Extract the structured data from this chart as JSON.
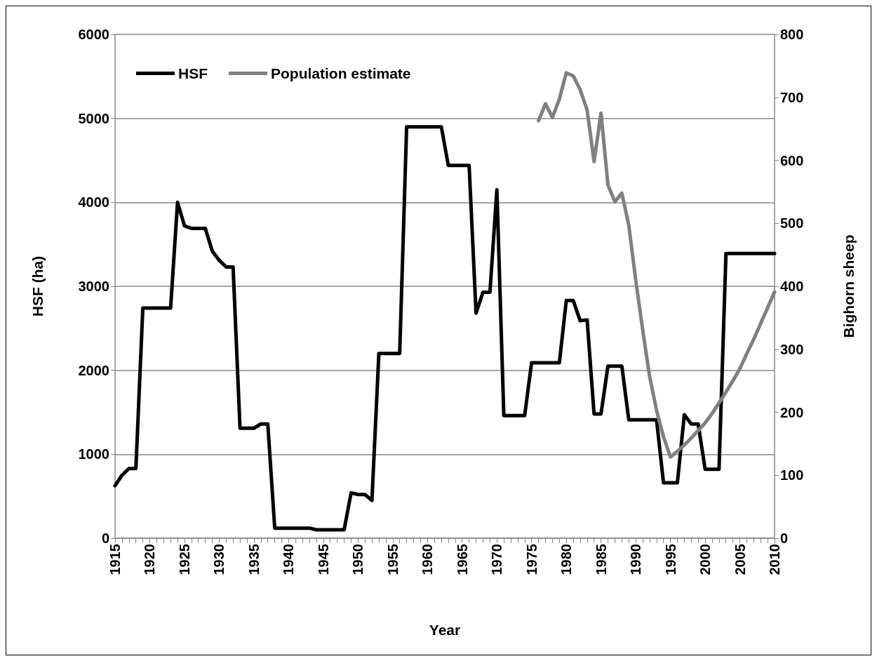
{
  "chart_data": {
    "type": "line",
    "xlabel": "Year",
    "ylabel": "HSF (ha)",
    "y2label": "Bighorn sheep",
    "x": [
      1915,
      1916,
      1917,
      1918,
      1919,
      1920,
      1921,
      1922,
      1923,
      1924,
      1925,
      1926,
      1927,
      1928,
      1929,
      1930,
      1931,
      1932,
      1933,
      1934,
      1935,
      1936,
      1937,
      1938,
      1939,
      1940,
      1941,
      1942,
      1943,
      1944,
      1945,
      1946,
      1947,
      1948,
      1949,
      1950,
      1951,
      1952,
      1953,
      1954,
      1955,
      1956,
      1957,
      1958,
      1959,
      1960,
      1961,
      1962,
      1963,
      1964,
      1965,
      1966,
      1967,
      1968,
      1969,
      1970,
      1971,
      1972,
      1973,
      1974,
      1975,
      1976,
      1977,
      1978,
      1979,
      1980,
      1981,
      1982,
      1983,
      1984,
      1985,
      1986,
      1987,
      1988,
      1989,
      1990,
      1991,
      1992,
      1993,
      1994,
      1995,
      1996,
      1997,
      1998,
      1999,
      2000,
      2001,
      2002,
      2003,
      2004,
      2005,
      2006,
      2007,
      2008,
      2009,
      2010
    ],
    "series": [
      {
        "name": "HSF",
        "color": "#000000",
        "values": [
          625,
          750,
          830,
          830,
          2740,
          2740,
          2740,
          2740,
          2740,
          4000,
          3720,
          3690,
          3690,
          3690,
          3420,
          3310,
          3230,
          3230,
          1310,
          1310,
          1310,
          1360,
          1360,
          120,
          120,
          120,
          120,
          120,
          120,
          100,
          100,
          100,
          100,
          100,
          540,
          520,
          520,
          450,
          2200,
          2200,
          2200,
          2200,
          4900,
          4900,
          4900,
          4900,
          4900,
          4900,
          4440,
          4440,
          4440,
          4440,
          2680,
          2930,
          2930,
          4150,
          1460,
          1460,
          1460,
          1460,
          2090,
          2090,
          2090,
          2090,
          2090,
          2830,
          2830,
          2590,
          2600,
          1480,
          1480,
          2050,
          2050,
          2050,
          1410,
          1410,
          1410,
          1410,
          1410,
          660,
          660,
          660,
          1470,
          1360,
          1360,
          820,
          820,
          820,
          3390,
          3390,
          3390,
          3390,
          3390,
          3390,
          3390,
          3390
        ]
      },
      {
        "name": "Population estimate",
        "color": "#808080",
        "axis": "y2",
        "x": [
          1976,
          1977,
          1978,
          1979,
          1980,
          1981,
          1982,
          1983,
          1984,
          1985,
          1986,
          1987,
          1988,
          1989,
          1990,
          1991,
          1992,
          1993,
          1994,
          1995,
          1996,
          1997,
          1998,
          1999,
          2000,
          2001,
          2002,
          2003,
          2004,
          2005,
          2006,
          2007,
          2008,
          2009,
          2010
        ],
        "values": [
          663,
          690,
          668,
          697,
          739,
          734,
          712,
          680,
          598,
          675,
          561,
          534,
          548,
          497,
          410,
          331,
          257,
          203,
          161,
          129,
          138,
          148,
          159,
          171,
          183,
          198,
          215,
          232,
          250,
          269,
          293,
          316,
          341,
          366,
          391
        ]
      }
    ],
    "xlim": [
      1915,
      2010
    ],
    "xticks": [
      1915,
      {
        "value": 1916,
        "label": null
      },
      {
        "value": 1917,
        "label": null
      },
      {
        "value": 1918,
        "label": null
      },
      {
        "value": 1919,
        "label": null
      },
      1920,
      {
        "value": 1921,
        "label": null
      },
      {
        "value": 1922,
        "label": null
      },
      {
        "value": 1923,
        "label": null
      },
      {
        "value": 1924,
        "label": null
      },
      1925,
      {
        "value": 1926,
        "label": null
      },
      {
        "value": 1927,
        "label": null
      },
      {
        "value": 1928,
        "label": null
      },
      {
        "value": 1929,
        "label": null
      },
      1930,
      {
        "value": 1931,
        "label": null
      },
      {
        "value": 1932,
        "label": null
      },
      {
        "value": 1933,
        "label": null
      },
      {
        "value": 1934,
        "label": null
      },
      1935,
      {
        "value": 1936,
        "label": null
      },
      {
        "value": 1937,
        "label": null
      },
      {
        "value": 1938,
        "label": null
      },
      {
        "value": 1939,
        "label": null
      },
      1940,
      {
        "value": 1941,
        "label": null
      },
      {
        "value": 1942,
        "label": null
      },
      {
        "value": 1943,
        "label": null
      },
      {
        "value": 1944,
        "label": null
      },
      1945,
      {
        "value": 1946,
        "label": null
      },
      {
        "value": 1947,
        "label": null
      },
      {
        "value": 1948,
        "label": null
      },
      {
        "value": 1949,
        "label": null
      },
      1950,
      {
        "value": 1951,
        "label": null
      },
      {
        "value": 1952,
        "label": null
      },
      {
        "value": 1953,
        "label": null
      },
      {
        "value": 1954,
        "label": null
      },
      1955,
      {
        "value": 1956,
        "label": null
      },
      {
        "value": 1957,
        "label": null
      },
      {
        "value": 1958,
        "label": null
      },
      {
        "value": 1959,
        "label": null
      },
      1960,
      {
        "value": 1961,
        "label": null
      },
      {
        "value": 1962,
        "label": null
      },
      {
        "value": 1963,
        "label": null
      },
      {
        "value": 1964,
        "label": null
      },
      1965,
      {
        "value": 1966,
        "label": null
      },
      {
        "value": 1967,
        "label": null
      },
      {
        "value": 1968,
        "label": null
      },
      {
        "value": 1969,
        "label": null
      },
      1970,
      {
        "value": 1971,
        "label": null
      },
      {
        "value": 1972,
        "label": null
      },
      {
        "value": 1973,
        "label": null
      },
      {
        "value": 1974,
        "label": null
      },
      1975,
      {
        "value": 1976,
        "label": null
      },
      {
        "value": 1977,
        "label": null
      },
      {
        "value": 1978,
        "label": null
      },
      {
        "value": 1979,
        "label": null
      },
      1980,
      {
        "value": 1981,
        "label": null
      },
      {
        "value": 1982,
        "label": null
      },
      {
        "value": 1983,
        "label": null
      },
      {
        "value": 1984,
        "label": null
      },
      1985,
      {
        "value": 1986,
        "label": null
      },
      {
        "value": 1987,
        "label": null
      },
      {
        "value": 1988,
        "label": null
      },
      {
        "value": 1989,
        "label": null
      },
      1990,
      {
        "value": 1991,
        "label": null
      },
      {
        "value": 1992,
        "label": null
      },
      {
        "value": 1993,
        "label": null
      },
      {
        "value": 1994,
        "label": null
      },
      1995,
      {
        "value": 1996,
        "label": null
      },
      {
        "value": 1997,
        "label": null
      },
      {
        "value": 1998,
        "label": null
      },
      {
        "value": 1999,
        "label": null
      },
      2000,
      {
        "value": 2001,
        "label": null
      },
      {
        "value": 2002,
        "label": null
      },
      {
        "value": 2003,
        "label": null
      },
      {
        "value": 2004,
        "label": null
      },
      2005,
      {
        "value": 2006,
        "label": null
      },
      {
        "value": 2007,
        "label": null
      },
      {
        "value": 2008,
        "label": null
      },
      {
        "value": 2009,
        "label": null
      },
      2010
    ],
    "ylim": [
      0,
      6000
    ],
    "yticks": [
      0,
      1000,
      2000,
      3000,
      4000,
      5000,
      6000
    ],
    "y2lim": [
      0,
      800
    ],
    "y2ticks": [
      0,
      100,
      200,
      300,
      400,
      500,
      600,
      700,
      800
    ],
    "grid": "y",
    "legend": "top left",
    "marker": "none",
    "line_style": "solid"
  }
}
